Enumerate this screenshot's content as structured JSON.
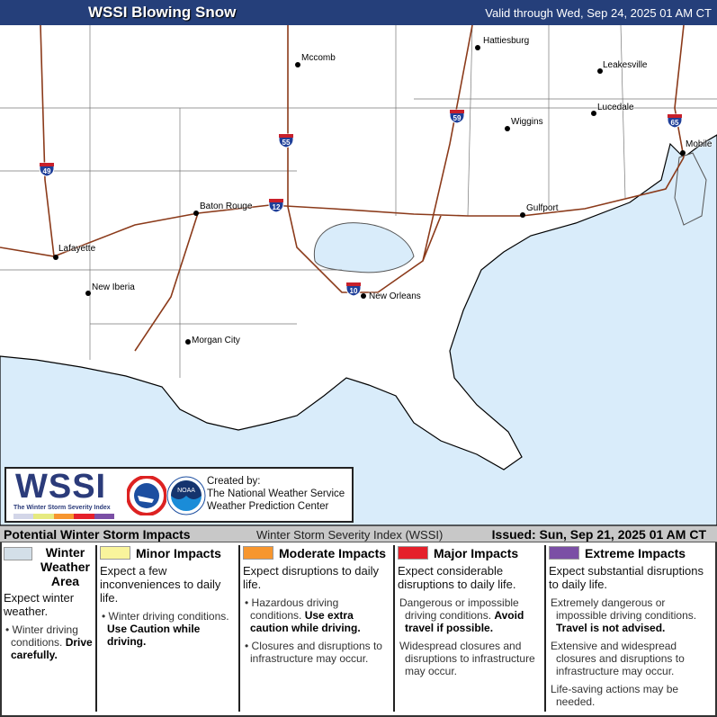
{
  "header": {
    "title": "WSSI Blowing Snow",
    "valid": "Valid through Wed, Sep 24, 2025 01 AM CT"
  },
  "map": {
    "colors": {
      "water": "#d9ecfa",
      "land": "#ffffff",
      "interstate": "#8b3a1a",
      "boundary": "#555555"
    },
    "cities": [
      {
        "name": "Hattiesburg"
      },
      {
        "name": "Mccomb"
      },
      {
        "name": "Leakesville"
      },
      {
        "name": "Lucedale"
      },
      {
        "name": "Wiggins"
      },
      {
        "name": "Mobile"
      },
      {
        "name": "Baton Rouge"
      },
      {
        "name": "Gulfport"
      },
      {
        "name": "Lafayette"
      },
      {
        "name": "New Iberia"
      },
      {
        "name": "New Orleans"
      },
      {
        "name": "Morgan City"
      }
    ],
    "interstates": [
      "49",
      "55",
      "12",
      "10",
      "59",
      "65"
    ]
  },
  "logo": {
    "wssi": "WSSI",
    "subtitle": "The Winter Storm Severity Index",
    "created_by": "Created by:",
    "org1": "The National Weather Service",
    "org2": "Weather Prediction Center",
    "nws_text": "NATIONAL WEATHER SERVICE",
    "noaa_text": "NOAA"
  },
  "legend": {
    "title": "Potential Winter Storm Impacts",
    "index": "Winter Storm Severity Index (WSSI)",
    "issued": "Issued: Sun, Sep 21, 2025 01 AM CT",
    "categories": [
      {
        "label": "Winter Weather Area",
        "color": "#d3dfe8",
        "expect": "Expect winter weather.",
        "bullets": [
          {
            "text": "Winter driving conditions. ",
            "bold": "Drive carefully."
          }
        ]
      },
      {
        "label": "Minor Impacts",
        "color": "#f9f49c",
        "expect": "Expect a few inconveniences to daily life.",
        "bullets": [
          {
            "text": "Winter driving conditions. ",
            "bold": "Use Caution while driving."
          }
        ]
      },
      {
        "label": "Moderate Impacts",
        "color": "#f7962e",
        "expect": "Expect disruptions to daily life.",
        "bullets": [
          {
            "text": "Hazardous driving conditions. ",
            "bold": "Use extra caution while driving."
          },
          {
            "text": "Closures and disruptions to infrastructure may occur.",
            "bold": ""
          }
        ]
      },
      {
        "label": "Major Impacts",
        "color": "#e5202b",
        "expect": "Expect considerable disruptions to daily life.",
        "bullets": [
          {
            "text": "Dangerous or impossible driving conditions. ",
            "bold": "Avoid travel if possible."
          },
          {
            "text": "Widespread closures and disruptions to infrastructure may occur.",
            "bold": ""
          }
        ]
      },
      {
        "label": "Extreme Impacts",
        "color": "#7b4fa5",
        "expect": "Expect substantial disruptions to daily life.",
        "bullets": [
          {
            "text": "Extremely dangerous or impossible driving conditions. ",
            "bold": "Travel is not advised."
          },
          {
            "text": "Extensive and widespread closures and disruptions to infrastructure may occur.",
            "bold": ""
          },
          {
            "text": "Life-saving actions may be needed.",
            "bold": ""
          }
        ]
      }
    ]
  }
}
